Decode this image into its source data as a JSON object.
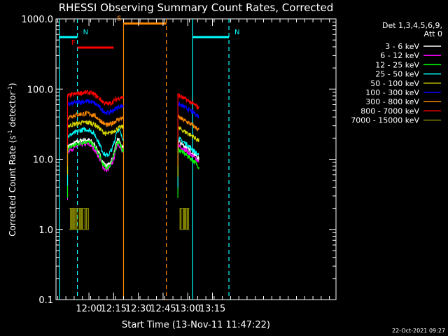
{
  "chart_data": {
    "type": "line",
    "title": "RHESSI Observing Summary Count Rates, Corrected",
    "xlabel": "Start Time (13-Nov-11 11:47:22)",
    "ylabel_main": "Corrected Count Rate (s",
    "ylabel_sup1": "-1",
    "ylabel_mid": " detector",
    "ylabel_sup2": "-1",
    "ylabel_end": ")",
    "y_scale": "log",
    "ylim": [
      0.1,
      1000
    ],
    "y_ticks": [
      {
        "value": 0.1,
        "label": "0.1"
      },
      {
        "value": 1,
        "label": "1.0"
      },
      {
        "value": 10,
        "label": "10.0"
      },
      {
        "value": 100,
        "label": "100.0"
      },
      {
        "value": 1000,
        "label": "1000.0"
      }
    ],
    "x_range_min": [
      -7,
      163
    ],
    "x_ticks": [
      {
        "value": 13,
        "label": "12:00"
      },
      {
        "value": 28,
        "label": "12:15"
      },
      {
        "value": 43,
        "label": "12:30"
      },
      {
        "value": 58,
        "label": "12:45"
      },
      {
        "value": 73,
        "label": "13:00"
      },
      {
        "value": 88,
        "label": "13:15"
      }
    ],
    "legend_header": [
      "Det 1,3,4,5,6,9,",
      "Att 0"
    ],
    "legend_position": "right",
    "series": [
      {
        "name": "3 - 6 keV",
        "color": "#ffffff",
        "shape": "lo",
        "pre": 15,
        "post": 18
      },
      {
        "name": "6 - 12 keV",
        "color": "#ff00ff",
        "shape": "lo",
        "pre": 13,
        "post": 16
      },
      {
        "name": "12 - 25 keV",
        "color": "#00ff00",
        "shape": "lo",
        "pre": 14,
        "post": 14
      },
      {
        "name": "25 - 50 keV",
        "color": "#00ffff",
        "shape": "lo",
        "pre": 21,
        "post": 20
      },
      {
        "name": "50 - 100 keV",
        "color": "#d8d800",
        "shape": "hi",
        "pre": 30,
        "post": 28
      },
      {
        "name": "100 - 300 keV",
        "color": "#0000ff",
        "shape": "hi",
        "pre": 60,
        "post": 62
      },
      {
        "name": "300 - 800 keV",
        "color": "#ff8800",
        "shape": "hi",
        "pre": 40,
        "post": 40
      },
      {
        "name": "800 - 7000 keV",
        "color": "#ff0000",
        "shape": "hi",
        "pre": 80,
        "post": 82
      },
      {
        "name": "7000 - 15000 keV",
        "color": "#808000",
        "shape": "step",
        "pre": 1.3,
        "post": 1.6
      }
    ],
    "data_segments": [
      [
        0,
        34
      ],
      [
        67,
        80
      ]
    ],
    "annotations": [
      {
        "label": "N",
        "color": "#00ffff",
        "x_start": -5,
        "x_end": 6,
        "bar_y": 550
      },
      {
        "label": "N",
        "color": "#00ffff",
        "x_start": 76,
        "x_end": 98,
        "bar_y": 550
      },
      {
        "label": "F",
        "color": "#ff0000",
        "x_start": 6,
        "x_end": 28,
        "bar_y": 390
      },
      {
        "label": "S",
        "color": "#ff8800",
        "x_start": 34,
        "x_end": 60,
        "bar_y": 860
      }
    ],
    "vertical_lines": [
      {
        "x": -5,
        "color": "#00ffff",
        "dashed": false
      },
      {
        "x": 6,
        "color": "#00ffff",
        "dashed": true
      },
      {
        "x": 76,
        "color": "#00ffff",
        "dashed": false
      },
      {
        "x": 98,
        "color": "#00ffff",
        "dashed": true
      },
      {
        "x": 34,
        "color": "#ff8800",
        "dashed": false
      },
      {
        "x": 60,
        "color": "#ff8800",
        "dashed": true
      }
    ],
    "grid": false,
    "timestamp": "22-Oct-2021 09:27"
  }
}
